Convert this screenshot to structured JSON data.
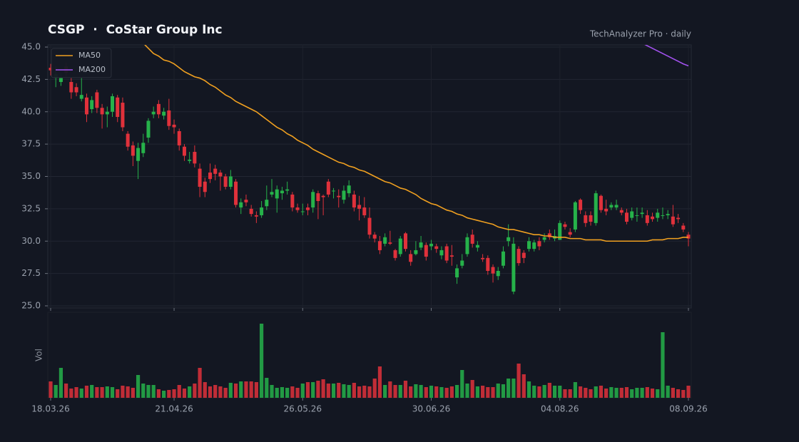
{
  "chart_data": {
    "type": "candlestick",
    "title": "CSGP  ·  CoStar Group Inc",
    "subtitle": "TechAnalyzer Pro · daily",
    "volume_label": "Vol",
    "legend": "upper left",
    "grid": true,
    "up_color": "#26b24a",
    "down_color": "#e0313b",
    "ylim": [
      25,
      45
    ],
    "yticks": [
      {
        "value": 25,
        "label": "25.0"
      },
      {
        "value": 27.5,
        "label": "27.5"
      },
      {
        "value": 30,
        "label": "30.0"
      },
      {
        "value": 32.5,
        "label": "32.5"
      },
      {
        "value": 35,
        "label": "35.0"
      },
      {
        "value": 37.5,
        "label": "37.5"
      },
      {
        "value": 40,
        "label": "40.0"
      },
      {
        "value": 42.5,
        "label": "42.5"
      },
      {
        "value": 45,
        "label": "45.0"
      }
    ],
    "vlim": [
      0,
      120
    ],
    "xticks": [
      "18.03.26",
      "21.04.26",
      "26.05.26",
      "30.06.26",
      "04.08.26",
      "08.09.26"
    ],
    "x": [
      "18.03.26",
      "19.03.26",
      "20.03.26",
      "23.03.26",
      "24.03.26",
      "25.03.26",
      "26.03.26",
      "27.03.26",
      "30.03.26",
      "31.03.26",
      "01.04.26",
      "02.04.26",
      "03.04.26",
      "06.04.26",
      "07.04.26",
      "08.04.26",
      "09.04.26",
      "10.04.26",
      "13.04.26",
      "14.04.26",
      "15.04.26",
      "16.04.26",
      "17.04.26",
      "20.04.26",
      "21.04.26",
      "22.04.26",
      "23.04.26",
      "24.04.26",
      "27.04.26",
      "28.04.26",
      "29.04.26",
      "30.04.26",
      "01.05.26",
      "04.05.26",
      "05.05.26",
      "06.05.26",
      "07.05.26",
      "08.05.26",
      "11.05.26",
      "12.05.26",
      "13.05.26",
      "14.05.26",
      "15.05.26",
      "18.05.26",
      "19.05.26",
      "20.05.26",
      "21.05.26",
      "22.05.26",
      "25.05.26",
      "26.05.26",
      "27.05.26",
      "28.05.26",
      "29.05.26",
      "01.06.26",
      "02.06.26",
      "03.06.26",
      "04.06.26",
      "05.06.26",
      "08.06.26",
      "09.06.26",
      "10.06.26",
      "11.06.26",
      "12.06.26",
      "15.06.26",
      "16.06.26",
      "17.06.26",
      "18.06.26",
      "19.06.26",
      "22.06.26",
      "23.06.26",
      "24.06.26",
      "25.06.26",
      "26.06.26",
      "29.06.26",
      "30.06.26",
      "01.07.26",
      "02.07.26",
      "03.07.26",
      "06.07.26",
      "07.07.26",
      "08.07.26",
      "09.07.26",
      "10.07.26",
      "13.07.26",
      "14.07.26",
      "15.07.26",
      "16.07.26",
      "17.07.26",
      "20.07.26",
      "21.07.26",
      "22.07.26",
      "23.07.26",
      "24.07.26",
      "27.07.26",
      "28.07.26",
      "29.07.26",
      "30.07.26",
      "31.07.26",
      "03.08.26",
      "04.08.26",
      "05.08.26",
      "06.08.26",
      "07.08.26",
      "10.08.26",
      "11.08.26",
      "12.08.26",
      "13.08.26",
      "14.08.26",
      "17.08.26",
      "18.08.26",
      "19.08.26",
      "20.08.26",
      "21.08.26",
      "24.08.26",
      "25.08.26",
      "26.08.26",
      "27.08.26",
      "28.08.26",
      "31.08.26",
      "01.09.26",
      "02.09.26",
      "03.09.26",
      "04.09.26",
      "07.09.26",
      "08.09.26"
    ],
    "open": [
      43.4,
      42.6,
      42.3,
      43.5,
      42.3,
      41.9,
      41.0,
      41.1,
      40.2,
      41.5,
      40.3,
      39.8,
      40.0,
      41.1,
      40.7,
      38.3,
      37.4,
      36.2,
      36.8,
      38.0,
      39.8,
      40.6,
      39.7,
      40.1,
      39.0,
      38.5,
      37.3,
      36.2,
      36.9,
      35.6,
      34.6,
      35.3,
      35.6,
      35.3,
      35.0,
      34.2,
      34.6,
      32.6,
      33.2,
      32.5,
      32.0,
      32.0,
      32.7,
      33.6,
      33.3,
      33.7,
      33.9,
      33.6,
      32.6,
      32.3,
      32.6,
      32.6,
      33.7,
      33.5,
      34.6,
      33.9,
      33.5,
      33.2,
      33.7,
      33.6,
      32.8,
      32.6,
      31.8,
      30.5,
      30.0,
      29.8,
      29.9,
      29.3,
      29.0,
      30.6,
      29.0,
      29.0,
      29.5,
      29.7,
      29.6,
      29.6,
      28.9,
      29.6,
      28.9,
      27.2,
      28.1,
      29.0,
      30.5,
      29.5,
      28.7,
      28.7,
      28.0,
      27.3,
      28.1,
      30.0,
      26.1,
      29.4,
      29.1,
      29.4,
      29.4,
      30.0,
      30.1,
      30.6,
      30.2,
      30.1,
      31.3,
      30.7,
      30.9,
      33.2,
      32.0,
      32.0,
      31.4,
      33.5,
      32.5,
      32.6,
      32.6,
      32.4,
      32.2,
      31.8,
      32.0,
      32.1,
      32.0,
      31.9,
      31.8,
      32.0,
      32.0,
      31.9,
      31.8,
      31.2,
      30.5
    ],
    "high": [
      43.7,
      43.5,
      43.0,
      43.8,
      42.6,
      42.2,
      42.6,
      41.4,
      41.2,
      41.7,
      40.6,
      40.4,
      41.4,
      41.3,
      41.1,
      38.5,
      37.7,
      37.6,
      38.3,
      39.5,
      40.4,
      40.9,
      40.3,
      41.0,
      39.4,
      38.7,
      37.5,
      36.9,
      37.4,
      36.0,
      34.9,
      36.0,
      35.9,
      35.5,
      35.2,
      35.5,
      34.8,
      33.3,
      33.6,
      32.8,
      32.3,
      33.1,
      34.3,
      34.8,
      34.3,
      34.2,
      34.6,
      33.8,
      32.9,
      32.9,
      32.9,
      34.0,
      33.9,
      33.6,
      34.8,
      34.1,
      34.0,
      34.3,
      34.7,
      33.9,
      33.5,
      33.4,
      32.6,
      30.7,
      30.4,
      30.6,
      30.8,
      29.4,
      30.4,
      30.7,
      29.3,
      30.0,
      30.4,
      29.9,
      30.1,
      29.8,
      29.6,
      29.8,
      29.7,
      28.2,
      29.0,
      30.6,
      30.9,
      30.0,
      29.0,
      28.9,
      28.2,
      28.0,
      29.6,
      31.3,
      30.3,
      29.6,
      29.3,
      30.3,
      30.1,
      30.3,
      30.6,
      30.9,
      30.9,
      31.6,
      31.5,
      31.0,
      33.1,
      33.3,
      32.3,
      32.3,
      33.9,
      33.6,
      33.2,
      33.0,
      33.2,
      32.6,
      32.5,
      32.6,
      32.6,
      32.6,
      32.4,
      32.2,
      32.5,
      32.6,
      32.4,
      32.8,
      32.1,
      31.4,
      30.7
    ],
    "low": [
      42.8,
      41.9,
      42.0,
      42.7,
      41.0,
      41.2,
      40.8,
      39.2,
      39.9,
      39.9,
      38.7,
      38.8,
      39.6,
      39.2,
      38.5,
      37.0,
      35.8,
      34.8,
      36.5,
      37.6,
      39.5,
      39.5,
      39.4,
      38.6,
      38.3,
      37.0,
      36.2,
      36.0,
      35.7,
      33.4,
      33.4,
      34.5,
      34.7,
      33.9,
      34.0,
      34.0,
      32.6,
      32.1,
      32.7,
      31.9,
      31.4,
      31.8,
      32.4,
      33.4,
      32.2,
      33.2,
      33.6,
      32.3,
      32.2,
      32.0,
      32.0,
      32.2,
      31.7,
      32.0,
      33.4,
      33.3,
      32.6,
      32.9,
      33.4,
      32.3,
      31.6,
      31.8,
      30.2,
      29.9,
      29.0,
      29.6,
      29.7,
      28.5,
      28.8,
      29.2,
      28.1,
      28.9,
      29.3,
      28.5,
      29.3,
      29.1,
      28.6,
      28.3,
      28.1,
      26.7,
      27.9,
      28.8,
      29.5,
      29.2,
      28.4,
      27.4,
      26.8,
      27.0,
      27.9,
      29.6,
      25.9,
      28.1,
      28.3,
      29.2,
      29.2,
      29.3,
      29.9,
      30.1,
      30.0,
      30.1,
      30.9,
      30.3,
      30.7,
      32.1,
      31.1,
      31.2,
      31.2,
      32.2,
      32.0,
      32.4,
      32.4,
      32.0,
      31.3,
      31.6,
      31.5,
      31.8,
      31.2,
      31.5,
      31.5,
      31.7,
      31.7,
      31.1,
      31.4,
      30.7,
      29.6
    ],
    "close": [
      43.2,
      42.9,
      42.6,
      43.0,
      41.5,
      41.5,
      41.3,
      39.8,
      40.9,
      40.3,
      39.8,
      40.0,
      41.2,
      39.6,
      38.8,
      37.3,
      36.6,
      37.2,
      37.6,
      39.3,
      40.0,
      39.8,
      40.0,
      38.9,
      38.8,
      37.4,
      36.6,
      36.3,
      36.0,
      34.2,
      33.8,
      34.8,
      35.2,
      35.0,
      34.2,
      35.0,
      32.8,
      33.0,
      33.0,
      32.1,
      31.9,
      32.6,
      33.2,
      33.8,
      34.0,
      33.9,
      34.0,
      32.6,
      32.4,
      32.3,
      32.4,
      33.8,
      33.1,
      33.4,
      33.6,
      33.9,
      33.4,
      33.9,
      34.3,
      32.6,
      32.5,
      32.0,
      30.5,
      30.2,
      29.3,
      30.3,
      29.8,
      28.7,
      30.2,
      29.4,
      28.4,
      29.3,
      29.9,
      28.8,
      29.8,
      29.4,
      29.3,
      28.5,
      28.8,
      27.9,
      28.5,
      30.3,
      29.8,
      29.7,
      28.6,
      27.7,
      27.5,
      27.7,
      29.2,
      30.3,
      29.8,
      28.3,
      28.7,
      30.0,
      29.9,
      29.6,
      30.3,
      30.3,
      30.4,
      31.4,
      31.1,
      30.5,
      33.0,
      32.4,
      31.4,
      31.5,
      33.7,
      32.4,
      32.3,
      32.8,
      32.8,
      32.2,
      31.5,
      32.3,
      32.0,
      32.2,
      31.4,
      31.7,
      32.2,
      32.0,
      32.1,
      31.3,
      31.7,
      30.9,
      30.2
    ],
    "volume": [
      23,
      18,
      42,
      20,
      13,
      15,
      13,
      17,
      18,
      15,
      15,
      16,
      15,
      12,
      17,
      16,
      14,
      32,
      20,
      18,
      18,
      12,
      10,
      11,
      12,
      18,
      13,
      16,
      20,
      42,
      22,
      16,
      18,
      16,
      14,
      21,
      20,
      23,
      23,
      23,
      22,
      104,
      28,
      18,
      14,
      15,
      14,
      16,
      14,
      20,
      22,
      22,
      24,
      26,
      20,
      20,
      21,
      19,
      18,
      21,
      16,
      17,
      16,
      27,
      44,
      18,
      23,
      18,
      18,
      24,
      16,
      19,
      18,
      15,
      17,
      16,
      15,
      14,
      16,
      18,
      39,
      20,
      25,
      16,
      17,
      15,
      15,
      20,
      19,
      27,
      27,
      48,
      33,
      23,
      17,
      16,
      18,
      21,
      17,
      17,
      12,
      12,
      22,
      16,
      14,
      12,
      16,
      17,
      13,
      15,
      14,
      14,
      15,
      12,
      14,
      14,
      15,
      13,
      12,
      92,
      17,
      14,
      12,
      11,
      17
    ],
    "series": [
      {
        "name": "MA50",
        "color": "#f0a020",
        "values": [
          null,
          null,
          null,
          null,
          null,
          null,
          null,
          null,
          null,
          null,
          null,
          null,
          null,
          null,
          null,
          null,
          null,
          null,
          45.3,
          44.9,
          44.5,
          44.3,
          44.0,
          43.9,
          43.7,
          43.4,
          43.1,
          42.9,
          42.7,
          42.6,
          42.4,
          42.1,
          41.9,
          41.6,
          41.3,
          41.1,
          40.8,
          40.6,
          40.4,
          40.2,
          40.0,
          39.7,
          39.4,
          39.1,
          38.8,
          38.6,
          38.3,
          38.1,
          37.8,
          37.6,
          37.4,
          37.1,
          36.9,
          36.7,
          36.5,
          36.3,
          36.1,
          36.0,
          35.8,
          35.7,
          35.5,
          35.4,
          35.2,
          35.0,
          34.8,
          34.6,
          34.5,
          34.3,
          34.1,
          34.0,
          33.8,
          33.6,
          33.3,
          33.1,
          32.9,
          32.8,
          32.6,
          32.4,
          32.3,
          32.1,
          32.0,
          31.8,
          31.7,
          31.6,
          31.5,
          31.4,
          31.3,
          31.1,
          31.0,
          30.9,
          30.9,
          30.8,
          30.7,
          30.6,
          30.5,
          30.5,
          30.4,
          30.4,
          30.3,
          30.3,
          30.3,
          30.2,
          30.2,
          30.2,
          30.1,
          30.1,
          30.1,
          30.1,
          30.0,
          30.0,
          30.0,
          30.0,
          30.0,
          30.0,
          30.0,
          30.0,
          30.0,
          30.1,
          30.1,
          30.1,
          30.2,
          30.2,
          30.2,
          30.3,
          30.3
        ]
      },
      {
        "name": "MA200",
        "color": "#a352f0",
        "values": [
          null,
          null,
          null,
          null,
          null,
          null,
          null,
          null,
          null,
          null,
          null,
          null,
          null,
          null,
          null,
          null,
          null,
          null,
          null,
          null,
          null,
          null,
          null,
          null,
          null,
          null,
          null,
          null,
          null,
          null,
          null,
          null,
          null,
          null,
          null,
          null,
          null,
          null,
          null,
          null,
          null,
          null,
          null,
          null,
          null,
          null,
          null,
          null,
          null,
          null,
          null,
          null,
          null,
          null,
          null,
          null,
          null,
          null,
          null,
          null,
          null,
          null,
          null,
          null,
          null,
          null,
          null,
          null,
          null,
          null,
          null,
          null,
          null,
          null,
          null,
          null,
          null,
          null,
          null,
          null,
          null,
          null,
          null,
          null,
          null,
          null,
          null,
          null,
          null,
          null,
          null,
          null,
          null,
          null,
          null,
          null,
          null,
          null,
          null,
          null,
          null,
          null,
          null,
          null,
          null,
          null,
          null,
          null,
          null,
          null,
          null,
          null,
          null,
          null,
          null,
          45.3,
          45.1,
          44.9,
          44.7,
          44.5,
          44.3,
          44.1,
          43.9,
          43.7,
          43.55
        ]
      }
    ]
  }
}
